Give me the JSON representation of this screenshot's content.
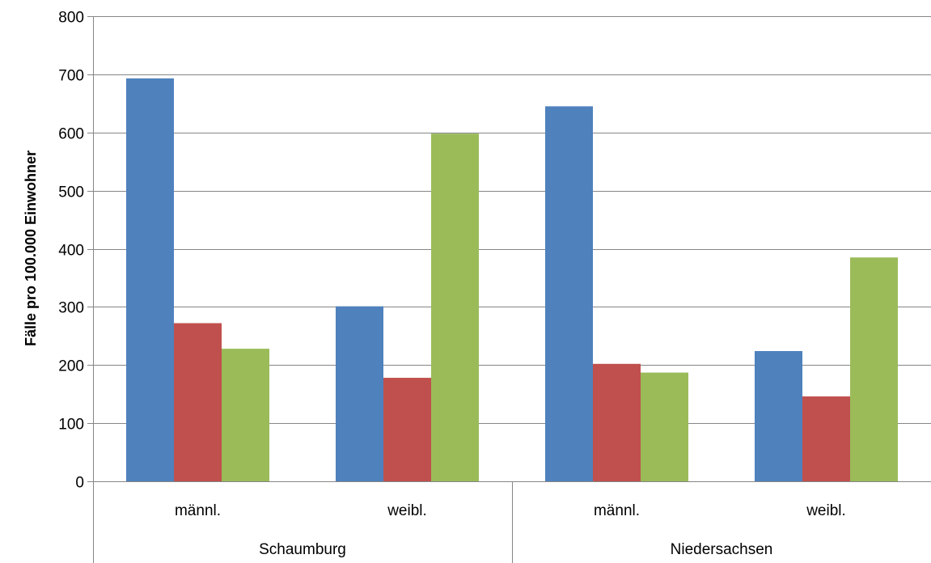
{
  "chart_data": {
    "type": "bar",
    "ylabel": "Fälle pro 100.000 Einwohner",
    "xlabel": "",
    "ylim": [
      0,
      800
    ],
    "yticks": [
      0,
      100,
      200,
      300,
      400,
      500,
      600,
      700,
      800
    ],
    "grid": true,
    "groups": [
      {
        "label": "Schaumburg",
        "categories": [
          "männl.",
          "weibl."
        ]
      },
      {
        "label": "Niedersachsen",
        "categories": [
          "männl.",
          "weibl."
        ]
      }
    ],
    "categories": [
      "männl.",
      "weibl.",
      "männl.",
      "weibl."
    ],
    "series": [
      {
        "values": [
          693,
          301,
          645,
          224
        ],
        "color": "#4f81bd"
      },
      {
        "values": [
          272,
          178,
          202,
          146
        ],
        "color": "#c0504d"
      },
      {
        "values": [
          228,
          598,
          187,
          385
        ],
        "color": "#9bbb59"
      }
    ],
    "colors": {
      "axis": "#868686",
      "grid": "#868686"
    }
  }
}
